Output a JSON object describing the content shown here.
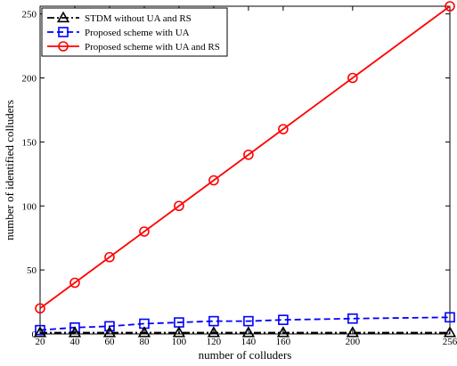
{
  "chart_data": {
    "type": "line",
    "title": "",
    "xlabel": "number of colluders",
    "ylabel": "number of identified colluders",
    "x": [
      20,
      40,
      60,
      80,
      100,
      120,
      140,
      160,
      200,
      256
    ],
    "xticks": [
      20,
      40,
      60,
      80,
      100,
      120,
      140,
      160,
      200,
      256
    ],
    "yticks": [
      0,
      50,
      100,
      150,
      200,
      250
    ],
    "xlim": [
      20,
      256
    ],
    "ylim": [
      0,
      256
    ],
    "grid": false,
    "legend_position": "top-left",
    "series": [
      {
        "name": "STDM without UA and RS",
        "color": "#000000",
        "marker": "triangle",
        "linestyle": "dashdot",
        "values": [
          1,
          1,
          1,
          1,
          1,
          1,
          1,
          1,
          1,
          1
        ]
      },
      {
        "name": "Proposed scheme with UA",
        "color": "#0000ff",
        "marker": "square",
        "linestyle": "dashed",
        "values": [
          3,
          5,
          6,
          8,
          9,
          10,
          10,
          11,
          12,
          13
        ]
      },
      {
        "name": "Proposed scheme with UA and RS",
        "color": "#ff0000",
        "marker": "circle",
        "linestyle": "solid",
        "values": [
          20,
          40,
          60,
          80,
          100,
          120,
          140,
          160,
          200,
          256
        ]
      }
    ]
  }
}
